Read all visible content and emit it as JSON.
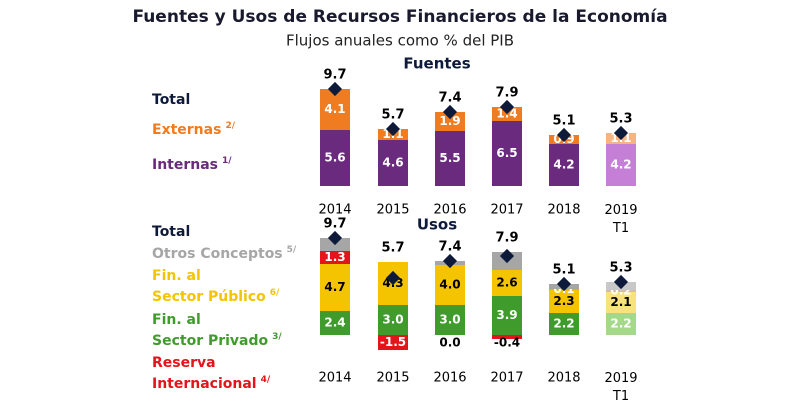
{
  "title": "Fuentes y Usos de Recursos Financieros de la Economía",
  "subtitle": "Flujos anuales como % del PIB",
  "chart_data": [
    {
      "type": "stacked-bar",
      "title": "Fuentes",
      "categories": [
        "2014",
        "2015",
        "2016",
        "2017",
        "2018",
        "2019 T1"
      ],
      "ylim": [
        0,
        10
      ],
      "total": {
        "name": "Total",
        "values": [
          9.7,
          5.7,
          7.4,
          7.9,
          5.1,
          5.3
        ],
        "color": "#0d1a3a"
      },
      "series": [
        {
          "name": [
            "Internas"
          ],
          "note": "1/",
          "color": "#6a2a7d",
          "label_color": "#ffffff",
          "colors": [
            "#6a2a7d",
            "#6a2a7d",
            "#6a2a7d",
            "#6a2a7d",
            "#6a2a7d",
            "#c57fd6"
          ],
          "values": [
            5.6,
            4.6,
            5.5,
            6.5,
            4.2,
            4.2
          ],
          "value_labels": [
            "5.6",
            "4.6",
            "5.5",
            "6.5",
            "4.2",
            "4.2"
          ]
        },
        {
          "name": [
            "Externas"
          ],
          "note": "2/",
          "color": "#f07c21",
          "label_color": "#ffffff",
          "colors": [
            "#f07c21",
            "#f07c21",
            "#f07c21",
            "#f07c21",
            "#f07c21",
            "#f6b483"
          ],
          "values": [
            4.1,
            1.1,
            1.9,
            1.4,
            0.9,
            1.1
          ],
          "value_labels": [
            "4.1",
            "1.1",
            "1.9",
            "1.4",
            "0.9",
            "1.1"
          ]
        }
      ]
    },
    {
      "type": "stacked-bar",
      "title": "Usos",
      "categories": [
        "2014",
        "2015",
        "2016",
        "2017",
        "2018",
        "2019 T1"
      ],
      "ylim": [
        -2,
        10
      ],
      "total": {
        "name": "Total",
        "values": [
          9.7,
          5.7,
          7.4,
          7.9,
          5.1,
          5.3
        ],
        "color": "#0d1a3a"
      },
      "series": [
        {
          "name": [
            "Fin. al",
            "Sector Privado"
          ],
          "note": "3/",
          "color": "#3f9b2c",
          "label_color": "#ffffff",
          "colors": [
            "#3f9b2c",
            "#3f9b2c",
            "#3f9b2c",
            "#3f9b2c",
            "#3f9b2c",
            "#a4d98a"
          ],
          "values": [
            2.4,
            3.0,
            3.0,
            3.9,
            2.2,
            2.2
          ],
          "value_labels": [
            "2.4",
            "3.0",
            "3.0",
            "3.9",
            "2.2",
            "2.2"
          ]
        },
        {
          "name": [
            "Fin. al",
            "Sector Público"
          ],
          "note": "6/",
          "color": "#f4c400",
          "label_color": "#000000",
          "colors": [
            "#f4c400",
            "#f4c400",
            "#f4c400",
            "#f4c400",
            "#f4c400",
            "#f8e27e"
          ],
          "values": [
            4.7,
            4.3,
            4.0,
            2.6,
            2.3,
            2.1
          ],
          "value_labels": [
            "4.7",
            "4.3",
            "4.0",
            "2.6",
            "2.3",
            "2.1"
          ]
        },
        {
          "name": [
            "Reserva",
            "Internacional"
          ],
          "note": "4/",
          "color": "#e4141b",
          "label_color": "#ffffff",
          "colors": [
            "#e4141b",
            "#e4141b",
            "#e4141b",
            "#e4141b",
            "#c9a0a0",
            "#d9b8b8"
          ],
          "values": [
            1.3,
            -1.5,
            0.0,
            -0.4,
            0.1,
            0.2
          ],
          "value_labels": [
            "1.3",
            "-1.5",
            "0.0",
            "-0.4",
            "0.1",
            "0.2"
          ]
        },
        {
          "name": [
            "Otros Conceptos"
          ],
          "note": "5/",
          "color": "#a6a6a6",
          "colors": [
            "#a6a6a6",
            "#a6a6a6",
            "#a6a6a6",
            "#a6a6a6",
            "#a6a6a6",
            "#c8c8c8"
          ],
          "values": [
            1.3,
            null,
            0.4,
            1.8,
            0.5,
            0.8
          ]
        }
      ]
    }
  ]
}
